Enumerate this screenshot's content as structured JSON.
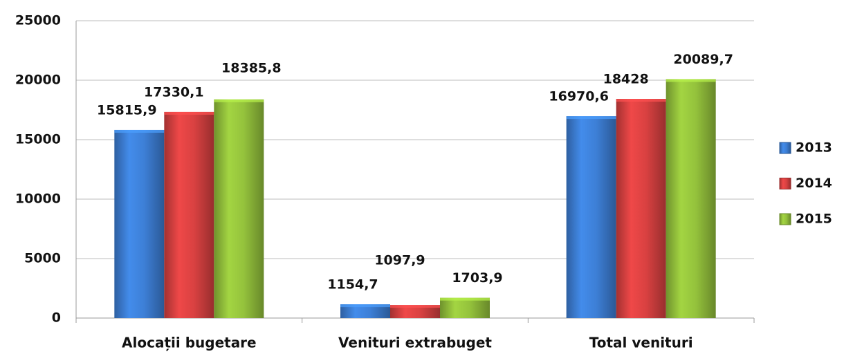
{
  "chart_data": {
    "type": "bar",
    "categories": [
      "Alocații bugetare",
      "Venituri extrabuget",
      "Total venituri"
    ],
    "series": [
      {
        "name": "2013",
        "color": "#3d7fd6",
        "values": [
          15815.9,
          1154.7,
          16970.6
        ],
        "value_labels": [
          "15815,9",
          "1154,7",
          "16970,6"
        ]
      },
      {
        "name": "2014",
        "color": "#d94141",
        "values": [
          17330.1,
          1097.9,
          18428
        ],
        "value_labels": [
          "17330,1",
          "1097,9",
          "18428"
        ]
      },
      {
        "name": "2015",
        "color": "#94c23c",
        "values": [
          18385.8,
          1703.9,
          20089.7
        ],
        "value_labels": [
          "18385,8",
          "1703,9",
          "20089,7"
        ]
      }
    ],
    "ylim": [
      0,
      25000
    ],
    "yticks": [
      0,
      5000,
      10000,
      15000,
      20000,
      25000
    ],
    "grid": true,
    "legend": "right"
  }
}
